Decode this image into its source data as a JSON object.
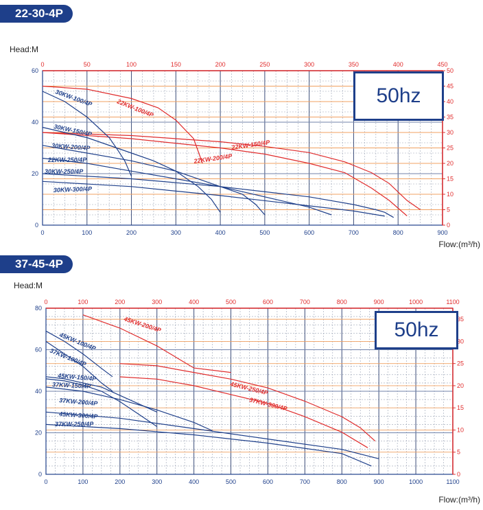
{
  "chart_data": [
    {
      "type": "line",
      "title": "22-30-4P",
      "frequency_label": "50hz",
      "ylabel": "Head:M",
      "xlabel": "Flow:(m³/h)",
      "blue_axis": {
        "xlim": [
          0,
          900
        ],
        "ylim": [
          0,
          60
        ],
        "xticks": [
          "0",
          "100",
          "200",
          "300",
          "400",
          "500",
          "600",
          "700",
          "800",
          "900"
        ],
        "yticks": [
          "0",
          "20",
          "40",
          "60"
        ]
      },
      "red_axis": {
        "xlim": [
          0,
          450
        ],
        "ylim": [
          0,
          50
        ],
        "xticks": [
          "0",
          "50",
          "100",
          "150",
          "200",
          "250",
          "300",
          "350",
          "400",
          "450"
        ],
        "yticks": [
          "0",
          "5",
          "10",
          "15",
          "20",
          "25",
          "30",
          "35",
          "40",
          "45",
          "50"
        ]
      },
      "colors": {
        "blue": "#1e3f8a",
        "red": "#e02b2b"
      },
      "series": [
        {
          "name": "22KW-100/4P",
          "axis": "red",
          "x": [
            0,
            50,
            100,
            130,
            150,
            170,
            180
          ],
          "y": [
            45,
            44,
            41,
            38,
            34,
            28,
            20
          ]
        },
        {
          "name": "22KW-150/4P",
          "axis": "red",
          "x": [
            0,
            100,
            200,
            250,
            300,
            340,
            370,
            390,
            410,
            425
          ],
          "y": [
            30,
            29,
            27,
            25.5,
            23.5,
            20.5,
            17,
            13.5,
            8,
            5
          ]
        },
        {
          "name": "22KW-200/4P",
          "axis": "red",
          "x": [
            0,
            100,
            200,
            250,
            300,
            340,
            370,
            390,
            410
          ],
          "y": [
            30,
            28,
            25,
            23,
            20,
            17,
            12,
            8,
            3
          ]
        },
        {
          "name": "30KW-100/4P",
          "axis": "blue",
          "x": [
            0,
            50,
            100,
            150,
            170,
            185,
            200
          ],
          "y": [
            52,
            48,
            42,
            34,
            29,
            25,
            19
          ]
        },
        {
          "name": "30KW-150/4P",
          "axis": "blue",
          "x": [
            0,
            100,
            200,
            250,
            300,
            350,
            380,
            400
          ],
          "y": [
            38,
            34,
            28,
            25,
            21,
            15,
            10,
            5
          ]
        },
        {
          "name": "30KW-200/4P",
          "axis": "blue",
          "x": [
            0,
            100,
            200,
            300,
            400,
            450,
            480,
            500
          ],
          "y": [
            31,
            28,
            25,
            21,
            15,
            12,
            8,
            4
          ]
        },
        {
          "name": "22KW-250/4P",
          "axis": "blue",
          "x": [
            0,
            100,
            200,
            300,
            400,
            500,
            600,
            650
          ],
          "y": [
            26,
            24,
            21,
            18,
            15,
            11,
            7,
            4
          ]
        },
        {
          "name": "30KW-250/4P",
          "axis": "blue",
          "x": [
            0,
            200,
            400,
            600,
            700,
            750,
            770,
            790
          ],
          "y": [
            20,
            18,
            15,
            11,
            8,
            6,
            5,
            3
          ]
        },
        {
          "name": "30KW-300/4P",
          "axis": "blue",
          "x": [
            0,
            200,
            400,
            600,
            700,
            770
          ],
          "y": [
            17,
            15,
            11.5,
            7.5,
            5.5,
            3.5
          ]
        }
      ]
    },
    {
      "type": "line",
      "title": "37-45-4P",
      "frequency_label": "50hz",
      "ylabel": "Head:M",
      "xlabel": "Flow:(m³/h)",
      "blue_axis": {
        "xlim": [
          0,
          1100
        ],
        "ylim": [
          0,
          80
        ],
        "xticks": [
          "0",
          "100",
          "200",
          "300",
          "400",
          "500",
          "600",
          "700",
          "800",
          "900",
          "1000",
          "1100"
        ],
        "yticks": [
          "0",
          "20",
          "40",
          "60",
          "80"
        ]
      },
      "red_axis": {
        "xlim": [
          0,
          1100
        ],
        "ylim": [
          0,
          37.5
        ],
        "xticks": [
          "0",
          "100",
          "200",
          "300",
          "400",
          "500",
          "600",
          "700",
          "800",
          "900",
          "1000",
          "1100"
        ],
        "yticks": [
          "0",
          "5",
          "10",
          "15",
          "20",
          "25",
          "30",
          "35"
        ]
      },
      "colors": {
        "blue": "#1e3f8a",
        "red": "#e02b2b"
      },
      "series": [
        {
          "name": "45KW-200/4P",
          "axis": "red",
          "x": [
            100,
            200,
            300,
            400,
            500
          ],
          "y": [
            36,
            33,
            29,
            24,
            23
          ]
        },
        {
          "name": "45KW-250/4P",
          "axis": "red",
          "x": [
            200,
            300,
            400,
            500,
            600,
            700,
            800,
            850,
            890
          ],
          "y": [
            25,
            24.5,
            23,
            21.5,
            19.5,
            16.5,
            13,
            10.5,
            7.5
          ]
        },
        {
          "name": "37KW-300/4P",
          "axis": "red",
          "x": [
            200,
            300,
            400,
            500,
            600,
            700,
            800,
            870
          ],
          "y": [
            22,
            21.5,
            20,
            18,
            16,
            13,
            9.5,
            6
          ]
        },
        {
          "name": "45KW-100/4P",
          "axis": "blue",
          "x": [
            0,
            50,
            100,
            150,
            180
          ],
          "y": [
            69,
            64,
            58,
            51,
            47
          ]
        },
        {
          "name": "37KW-100/4P",
          "axis": "blue",
          "x": [
            0,
            50,
            100,
            150,
            180
          ],
          "y": [
            64,
            58,
            52,
            44,
            40
          ]
        },
        {
          "name": "45KW-150/4P",
          "axis": "blue",
          "x": [
            0,
            50,
            100,
            150,
            200,
            250,
            300
          ],
          "y": [
            47,
            46,
            44,
            42,
            38,
            34,
            30
          ]
        },
        {
          "name": "37KW-150/4P",
          "axis": "blue",
          "x": [
            0,
            50,
            100,
            150,
            200,
            250,
            300
          ],
          "y": [
            46,
            45,
            43,
            40,
            35,
            29,
            23
          ]
        },
        {
          "name": "37KW-200/4P",
          "axis": "blue",
          "x": [
            0,
            100,
            200,
            300,
            400,
            450
          ],
          "y": [
            42,
            40,
            36,
            31,
            25,
            21
          ]
        },
        {
          "name": "45KW-300/4P",
          "axis": "blue",
          "x": [
            0,
            200,
            400,
            600,
            800,
            900
          ],
          "y": [
            30,
            27,
            22,
            17,
            12,
            7.5
          ]
        },
        {
          "name": "37KW-250/4P",
          "axis": "blue",
          "x": [
            0,
            200,
            400,
            600,
            800,
            880
          ],
          "y": [
            24,
            22,
            19,
            15,
            10,
            4
          ]
        }
      ]
    }
  ]
}
